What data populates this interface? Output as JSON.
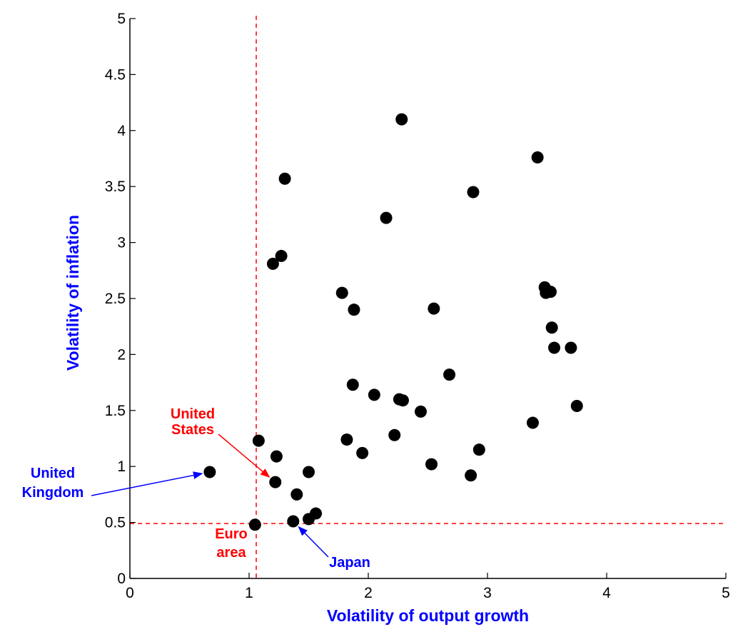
{
  "chart_data": {
    "type": "scatter",
    "title": "",
    "xlabel": "Volatility of output growth",
    "ylabel": "Volatility of inflation",
    "xlim": [
      0,
      5
    ],
    "ylim": [
      0,
      5
    ],
    "xticks": [
      0,
      1,
      2,
      3,
      4,
      5
    ],
    "xtick_labels": [
      "0",
      "1",
      "2",
      "3",
      "4",
      "5"
    ],
    "yticks": [
      0,
      0.5,
      1,
      1.5,
      2,
      2.5,
      3,
      3.5,
      4,
      4.5,
      5
    ],
    "ytick_labels": [
      "0",
      "0.5",
      "1",
      "1.5",
      "2",
      "2.5",
      "3",
      "3.5",
      "4",
      "4.5",
      "5"
    ],
    "grid": false,
    "reference_lines": {
      "vertical_x": 1.06,
      "horizontal_y": 0.49,
      "color": "#ff0000",
      "style": "dashed"
    },
    "points": [
      {
        "x": 1.05,
        "y": 0.48
      },
      {
        "x": 0.67,
        "y": 0.95
      },
      {
        "x": 1.08,
        "y": 1.23
      },
      {
        "x": 1.22,
        "y": 0.86
      },
      {
        "x": 1.23,
        "y": 1.09
      },
      {
        "x": 1.2,
        "y": 2.81
      },
      {
        "x": 1.27,
        "y": 2.88
      },
      {
        "x": 1.3,
        "y": 3.57
      },
      {
        "x": 1.37,
        "y": 0.51
      },
      {
        "x": 1.4,
        "y": 0.75
      },
      {
        "x": 1.5,
        "y": 0.95
      },
      {
        "x": 1.5,
        "y": 0.53
      },
      {
        "x": 1.56,
        "y": 0.58
      },
      {
        "x": 1.78,
        "y": 2.55
      },
      {
        "x": 1.82,
        "y": 1.24
      },
      {
        "x": 1.87,
        "y": 1.73
      },
      {
        "x": 1.88,
        "y": 2.4
      },
      {
        "x": 1.95,
        "y": 1.12
      },
      {
        "x": 2.05,
        "y": 1.64
      },
      {
        "x": 2.15,
        "y": 3.22
      },
      {
        "x": 2.22,
        "y": 1.28
      },
      {
        "x": 2.26,
        "y": 1.6
      },
      {
        "x": 2.29,
        "y": 1.59
      },
      {
        "x": 2.28,
        "y": 4.1
      },
      {
        "x": 2.44,
        "y": 1.49
      },
      {
        "x": 2.53,
        "y": 1.02
      },
      {
        "x": 2.55,
        "y": 2.41
      },
      {
        "x": 2.68,
        "y": 1.82
      },
      {
        "x": 2.86,
        "y": 0.92
      },
      {
        "x": 2.88,
        "y": 3.45
      },
      {
        "x": 2.93,
        "y": 1.15
      },
      {
        "x": 3.38,
        "y": 1.39
      },
      {
        "x": 3.42,
        "y": 3.76
      },
      {
        "x": 3.48,
        "y": 2.6
      },
      {
        "x": 3.49,
        "y": 2.55
      },
      {
        "x": 3.53,
        "y": 2.56
      },
      {
        "x": 3.54,
        "y": 2.24
      },
      {
        "x": 3.56,
        "y": 2.06
      },
      {
        "x": 3.7,
        "y": 2.06
      },
      {
        "x": 3.75,
        "y": 1.54
      }
    ],
    "annotations": [
      {
        "lines": [
          "United",
          "States"
        ],
        "color": "#ff0000",
        "target": {
          "x": 1.22,
          "y": 0.86
        }
      },
      {
        "lines": [
          "United",
          "Kingdom"
        ],
        "color": "#0000ff",
        "target": {
          "x": 0.67,
          "y": 0.95
        }
      },
      {
        "lines": [
          "Euro",
          "area"
        ],
        "color": "#ff0000",
        "target": {
          "x": 1.05,
          "y": 0.48
        }
      },
      {
        "lines": [
          "Japan"
        ],
        "color": "#0000ff",
        "target": {
          "x": 1.37,
          "y": 0.51
        }
      }
    ],
    "colors": {
      "points": "#000000",
      "axis_titles": "#0000ff"
    }
  }
}
